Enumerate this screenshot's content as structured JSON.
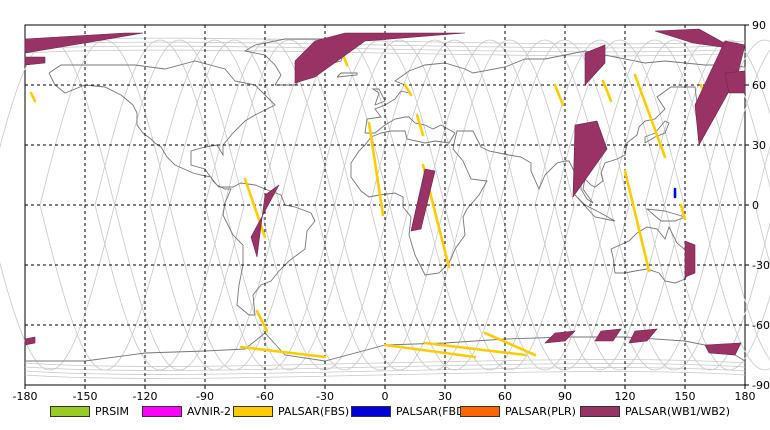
{
  "chart_data": {
    "type": "map",
    "xlim": [
      -180,
      180
    ],
    "ylim": [
      -90,
      90
    ],
    "x_ticks": [
      "-180",
      "-150",
      "-120",
      "-90",
      "-60",
      "-30",
      "0",
      "30",
      "60",
      "90",
      "120",
      "150",
      "180"
    ],
    "y_ticks": [
      "90",
      "60",
      "30",
      "0",
      "-30",
      "-60",
      "-90"
    ],
    "grid": true,
    "legend": [
      {
        "label": "PRSIM",
        "color": "#99cc22"
      },
      {
        "label": "AVNIR-2",
        "color": "#ff00ff"
      },
      {
        "label": "PALSAR(FBS)",
        "color": "#ffcc00"
      },
      {
        "label": "PALSAR(FBD)",
        "color": "#0000dd"
      },
      {
        "label": "PALSAR(PLR)",
        "color": "#ff6600"
      },
      {
        "label": "PALSAR(WB1/WB2)",
        "color": "#993366"
      }
    ],
    "series": [
      {
        "name": "PALSAR(FBS)",
        "color": "#ffcc00",
        "strips": [
          [
            [
              -21,
              75
            ],
            [
              -19,
              70
            ]
          ],
          [
            [
              -177,
              56
            ],
            [
              -175,
              52
            ]
          ],
          [
            [
              -70,
              13
            ],
            [
              -60,
              -16
            ]
          ],
          [
            [
              -64,
              -53
            ],
            [
              -59,
              -63
            ]
          ],
          [
            [
              -72,
              -71
            ],
            [
              -30,
              -76
            ]
          ],
          [
            [
              -8,
              41
            ],
            [
              -1,
              -5
            ]
          ],
          [
            [
              19,
              20
            ],
            [
              32,
              -31
            ]
          ],
          [
            [
              10,
              60
            ],
            [
              13,
              55
            ]
          ],
          [
            [
              16,
              45
            ],
            [
              19,
              35
            ]
          ],
          [
            [
              85,
              60
            ],
            [
              89,
              50
            ]
          ],
          [
            [
              109,
              62
            ],
            [
              113,
              52
            ]
          ],
          [
            [
              125,
              65
            ],
            [
              140,
              24
            ]
          ],
          [
            [
              120,
              17
            ],
            [
              132,
              -33
            ]
          ],
          [
            [
              0,
              -70
            ],
            [
              45,
              -76
            ]
          ],
          [
            [
              20,
              -69
            ],
            [
              70,
              -75
            ]
          ],
          [
            [
              50,
              -64
            ],
            [
              75,
              -75
            ]
          ],
          [
            [
              148,
              0
            ],
            [
              150,
              -7
            ]
          ],
          [
            [
              158,
              60
            ],
            [
              160,
              55
            ]
          ]
        ]
      },
      {
        "name": "PALSAR(FBD)",
        "color": "#0000dd",
        "strips": [
          [
            [
              145,
              8
            ],
            [
              145,
              4
            ]
          ]
        ]
      },
      {
        "name": "PALSAR(WB1/WB2)",
        "color": "#993366",
        "polys": [
          [
            [
              -180,
              83
            ],
            [
              -130,
              86
            ],
            [
              -121,
              86
            ],
            [
              -150,
              81
            ],
            [
              -180,
              76
            ]
          ],
          [
            [
              -180,
              74
            ],
            [
              -170,
              74
            ],
            [
              -170,
              71
            ],
            [
              -180,
              70
            ]
          ],
          [
            [
              -45,
              72
            ],
            [
              -35,
              82
            ],
            [
              -20,
              86
            ],
            [
              40,
              86
            ],
            [
              -10,
              82
            ],
            [
              -35,
              64
            ],
            [
              -45,
              61
            ]
          ],
          [
            [
              -60,
              5
            ],
            [
              -53,
              10
            ],
            [
              -67,
              -16
            ],
            [
              -64,
              -26
            ]
          ],
          [
            [
              20,
              18
            ],
            [
              25,
              17
            ],
            [
              18,
              -12
            ],
            [
              13,
              -13
            ]
          ],
          [
            [
              95,
              40
            ],
            [
              106,
              42
            ],
            [
              111,
              28
            ],
            [
              94,
              4
            ]
          ],
          [
            [
              135,
              87
            ],
            [
              157,
              88
            ],
            [
              175,
              78
            ],
            [
              154,
              81
            ]
          ],
          [
            [
              100,
              76
            ],
            [
              110,
              80
            ],
            [
              110,
              71
            ],
            [
              100,
              60
            ]
          ],
          [
            [
              155,
              50
            ],
            [
              170,
              82
            ],
            [
              180,
              80
            ],
            [
              176,
              64
            ],
            [
              157,
              30
            ]
          ],
          [
            [
              170,
              66
            ],
            [
              180,
              67
            ],
            [
              180,
              56
            ],
            [
              172,
              56
            ]
          ],
          [
            [
              150,
              -18
            ],
            [
              155,
              -20
            ],
            [
              155,
              -34
            ],
            [
              150,
              -36
            ]
          ],
          [
            [
              -180,
              -67
            ],
            [
              -175,
              -66
            ],
            [
              -175,
              -69
            ],
            [
              -180,
              -70
            ]
          ],
          [
            [
              85,
              -64
            ],
            [
              95,
              -63
            ],
            [
              90,
              -68
            ],
            [
              80,
              -69
            ]
          ],
          [
            [
              108,
              -63
            ],
            [
              118,
              -62
            ],
            [
              114,
              -68
            ],
            [
              105,
              -68
            ]
          ],
          [
            [
              125,
              -63
            ],
            [
              136,
              -62
            ],
            [
              131,
              -68
            ],
            [
              122,
              -69
            ]
          ],
          [
            [
              160,
              -70
            ],
            [
              178,
              -69
            ],
            [
              175,
              -75
            ],
            [
              162,
              -74
            ]
          ]
        ]
      }
    ]
  },
  "legend": {
    "items": [
      {
        "label": "PRSIM"
      },
      {
        "label": "AVNIR-2"
      },
      {
        "label": "PALSAR(FBS)"
      },
      {
        "label": "PALSAR(FBD)"
      },
      {
        "label": "PALSAR(PLR)"
      },
      {
        "label": "PALSAR(WB1/WB2)"
      }
    ]
  }
}
